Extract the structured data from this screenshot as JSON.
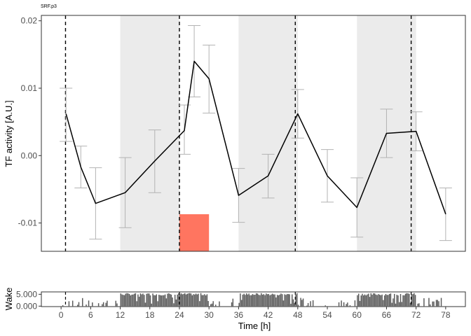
{
  "chart_data": [
    {
      "type": "line",
      "title": "SRF.p3",
      "xlabel": "",
      "ylabel": "TF activity [A.U.]",
      "xlim": [
        -4,
        82
      ],
      "ylim": [
        -0.0142,
        0.0208
      ],
      "y_ticks": [
        -0.01,
        0.0,
        0.01,
        0.02
      ],
      "y_tick_labels": [
        "-0.01",
        "0.00",
        "0.01",
        "0.02"
      ],
      "grid": false,
      "colors": {
        "line": "#000000",
        "errorbar": "#b3b3b3",
        "shade": "#ebebeb",
        "highlight": "#ff7560",
        "vline": "#000000"
      },
      "dark_periods": [
        [
          12,
          24
        ],
        [
          36,
          48
        ],
        [
          60,
          72
        ]
      ],
      "vlines": [
        0.9,
        24,
        47.5,
        71
      ],
      "highlight": {
        "x": [
          24,
          30
        ],
        "y": [
          -0.0142,
          -0.0087
        ]
      },
      "series": [
        {
          "x": [
            1,
            4,
            7,
            13,
            19,
            25,
            27,
            30,
            36,
            42,
            48,
            54,
            60,
            66,
            72,
            78
          ],
          "y": [
            0.0062,
            -0.0017,
            -0.0071,
            -0.0055,
            -0.0008,
            0.0037,
            0.014,
            0.0114,
            -0.0059,
            -0.003,
            0.0062,
            -0.003,
            -0.0077,
            0.0033,
            0.0036,
            -0.0087
          ],
          "err_low": [
            0.0021,
            -0.0048,
            -0.0124,
            -0.0107,
            -0.0055,
            0.0002,
            0.0087,
            0.0063,
            -0.0099,
            -0.0063,
            0.0026,
            -0.0069,
            -0.0121,
            -0.0003,
            0.0007,
            -0.0126
          ],
          "err_high": [
            0.01,
            0.0014,
            -0.0018,
            -0.0003,
            0.0038,
            0.0075,
            0.0193,
            0.0164,
            -0.0019,
            0.0002,
            0.0098,
            0.0009,
            -0.0033,
            0.0069,
            0.0065,
            -0.0048
          ]
        }
      ]
    },
    {
      "type": "bar",
      "title": "",
      "xlabel": "Time [h]",
      "ylabel": "Wake",
      "xlim": [
        -4,
        82
      ],
      "ylim": [
        -200,
        6000
      ],
      "x_ticks": [
        0,
        6,
        12,
        18,
        24,
        30,
        36,
        42,
        48,
        54,
        60,
        66,
        72,
        78
      ],
      "x_tick_labels": [
        "0",
        "6",
        "12",
        "18",
        "24",
        "30",
        "36",
        "42",
        "48",
        "54",
        "60",
        "66",
        "72",
        "78"
      ],
      "y_ticks": [
        0,
        5000
      ],
      "y_tick_labels": [
        "0.000",
        "5.000"
      ],
      "color": "#595959",
      "segments": [
        {
          "range": [
            0,
            12
          ],
          "level": "low"
        },
        {
          "range": [
            12,
            30
          ],
          "level": "high"
        },
        {
          "range": [
            30,
            36
          ],
          "level": "low"
        },
        {
          "range": [
            36,
            48
          ],
          "level": "high"
        },
        {
          "range": [
            48,
            60
          ],
          "level": "low"
        },
        {
          "range": [
            60,
            72
          ],
          "level": "high"
        },
        {
          "range": [
            72,
            78
          ],
          "level": "low"
        }
      ]
    }
  ]
}
